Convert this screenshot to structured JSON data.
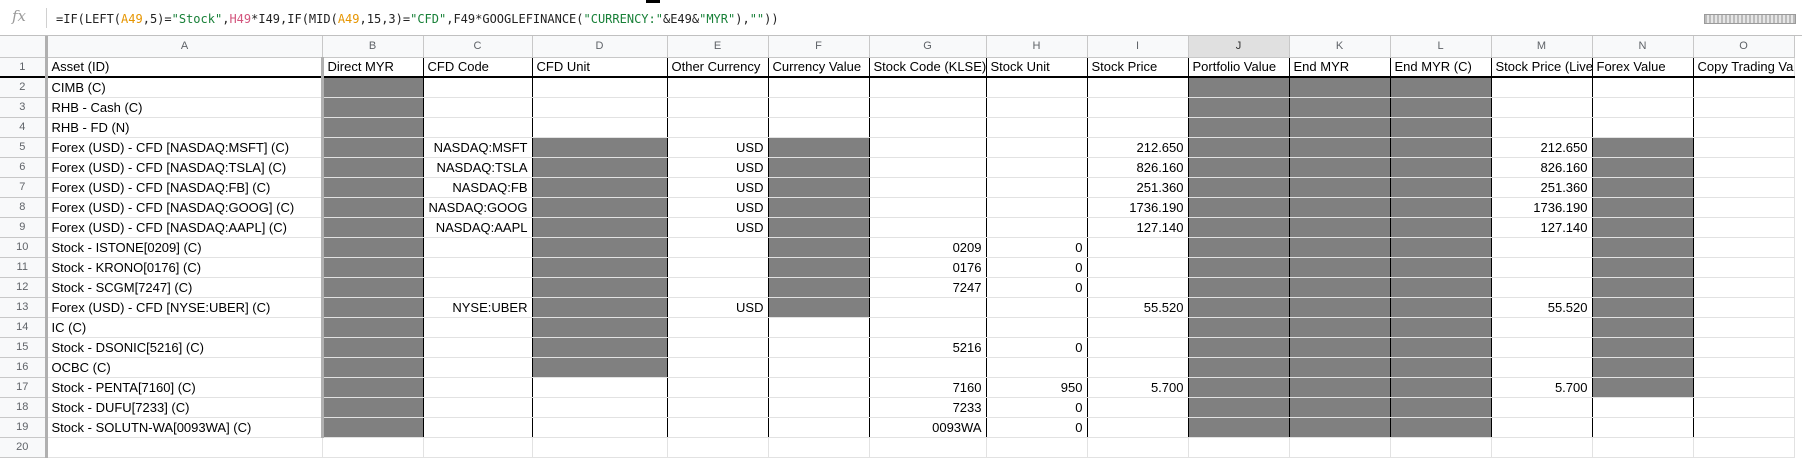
{
  "formula_bar": {
    "fx_label": "fx",
    "segments": [
      {
        "text": "=IF(LEFT(",
        "style": "plain"
      },
      {
        "text": "A49",
        "style": "ref1"
      },
      {
        "text": ",5)=",
        "style": "plain"
      },
      {
        "text": "\"Stock\"",
        "style": "string"
      },
      {
        "text": ",",
        "style": "plain"
      },
      {
        "text": "H49",
        "style": "ref2"
      },
      {
        "text": "*I49,IF(MID(",
        "style": "plain"
      },
      {
        "text": "A49",
        "style": "ref1"
      },
      {
        "text": ",15,3)=",
        "style": "plain"
      },
      {
        "text": "\"CFD\"",
        "style": "string"
      },
      {
        "text": ",F49*GOOGLEFINANCE(",
        "style": "plain"
      },
      {
        "text": "\"CURRENCY:\"",
        "style": "string"
      },
      {
        "text": "&E49&",
        "style": "plain"
      },
      {
        "text": "\"MYR\"",
        "style": "string"
      },
      {
        "text": "),",
        "style": "plain"
      },
      {
        "text": "\"\"",
        "style": "string"
      },
      {
        "text": "))",
        "style": "plain"
      }
    ]
  },
  "colors": {
    "shade": "#808080",
    "header_bg": "#f8f9fa",
    "string": "#188038",
    "ref1": "#e69500",
    "ref2": "#d3557d"
  },
  "columns": [
    "A",
    "B",
    "C",
    "D",
    "E",
    "F",
    "G",
    "H",
    "I",
    "J",
    "K",
    "L",
    "M",
    "N",
    "O"
  ],
  "selected_column": "J",
  "header_row": [
    "Asset (ID)",
    "Direct MYR",
    "CFD Code",
    "CFD Unit",
    "Other Currency",
    "Currency Value",
    "Stock Code (KLSE)",
    "Stock Unit",
    "Stock Price",
    "Portfolio Value",
    "End MYR",
    "End MYR (C)",
    "Stock Price (Live)",
    "Forex Value",
    "Copy Trading Value"
  ],
  "rows": [
    {
      "num": "2",
      "cells": [
        "CIMB (C)",
        "",
        "",
        "",
        "",
        "",
        "",
        "",
        "",
        "",
        "",
        "",
        "",
        "",
        ""
      ]
    },
    {
      "num": "3",
      "cells": [
        "RHB - Cash (C)",
        "",
        "",
        "",
        "",
        "",
        "",
        "",
        "",
        "",
        "",
        "",
        "",
        "",
        ""
      ]
    },
    {
      "num": "4",
      "cells": [
        "RHB - FD (N)",
        "",
        "",
        "",
        "",
        "",
        "",
        "",
        "",
        "",
        "",
        "",
        "",
        "",
        ""
      ]
    },
    {
      "num": "5",
      "cells": [
        "Forex (USD) - CFD [NASDAQ:MSFT] (C)",
        "",
        "NASDAQ:MSFT",
        "",
        "USD",
        "",
        "",
        "",
        "212.650",
        "",
        "",
        "",
        "212.650",
        "",
        ""
      ]
    },
    {
      "num": "6",
      "cells": [
        "Forex (USD) - CFD [NASDAQ:TSLA] (C)",
        "",
        "NASDAQ:TSLA",
        "",
        "USD",
        "",
        "",
        "",
        "826.160",
        "",
        "",
        "",
        "826.160",
        "",
        ""
      ]
    },
    {
      "num": "7",
      "cells": [
        "Forex (USD) - CFD [NASDAQ:FB] (C)",
        "",
        "NASDAQ:FB",
        "",
        "USD",
        "",
        "",
        "",
        "251.360",
        "",
        "",
        "",
        "251.360",
        "",
        ""
      ]
    },
    {
      "num": "8",
      "cells": [
        "Forex (USD) - CFD [NASDAQ:GOOG] (C)",
        "",
        "NASDAQ:GOOG",
        "",
        "USD",
        "",
        "",
        "",
        "1736.190",
        "",
        "",
        "",
        "1736.190",
        "",
        ""
      ]
    },
    {
      "num": "9",
      "cells": [
        "Forex (USD) - CFD [NASDAQ:AAPL] (C)",
        "",
        "NASDAQ:AAPL",
        "",
        "USD",
        "",
        "",
        "",
        "127.140",
        "",
        "",
        "",
        "127.140",
        "",
        ""
      ]
    },
    {
      "num": "10",
      "cells": [
        "Stock - ISTONE[0209] (C)",
        "",
        "",
        "",
        "",
        "",
        "0209",
        "0",
        "",
        "",
        "",
        "",
        "",
        "",
        ""
      ]
    },
    {
      "num": "11",
      "cells": [
        "Stock - KRONO[0176] (C)",
        "",
        "",
        "",
        "",
        "",
        "0176",
        "0",
        "",
        "",
        "",
        "",
        "",
        "",
        ""
      ]
    },
    {
      "num": "12",
      "cells": [
        "Stock - SCGM[7247] (C)",
        "",
        "",
        "",
        "",
        "",
        "7247",
        "0",
        "",
        "",
        "",
        "",
        "",
        "",
        ""
      ]
    },
    {
      "num": "13",
      "cells": [
        "Forex (USD) - CFD [NYSE:UBER] (C)",
        "",
        "NYSE:UBER",
        "",
        "USD",
        "",
        "",
        "",
        "55.520",
        "",
        "",
        "",
        "55.520",
        "",
        ""
      ]
    },
    {
      "num": "14",
      "cells": [
        "IC (C)",
        "",
        "",
        "",
        "",
        "",
        "",
        "",
        "",
        "",
        "",
        "",
        "",
        "",
        ""
      ]
    },
    {
      "num": "15",
      "cells": [
        "Stock - DSONIC[5216] (C)",
        "",
        "",
        "",
        "",
        "",
        "5216",
        "0",
        "",
        "",
        "",
        "",
        "",
        "",
        ""
      ]
    },
    {
      "num": "16",
      "cells": [
        "OCBC (C)",
        "",
        "",
        "",
        "",
        "",
        "",
        "",
        "",
        "",
        "",
        "",
        "",
        "",
        ""
      ]
    },
    {
      "num": "17",
      "cells": [
        "Stock - PENTA[7160] (C)",
        "",
        "",
        "",
        "",
        "",
        "7160",
        "950",
        "5.700",
        "",
        "",
        "",
        "5.700",
        "",
        ""
      ]
    },
    {
      "num": "18",
      "cells": [
        "Stock - DUFU[7233] (C)",
        "",
        "",
        "",
        "",
        "",
        "7233",
        "0",
        "",
        "",
        "",
        "",
        "",
        "",
        ""
      ]
    },
    {
      "num": "19",
      "cells": [
        "Stock - SOLUTN-WA[0093WA] (C)",
        "",
        "",
        "",
        "",
        "",
        "0093WA",
        "0",
        "",
        "",
        "",
        "",
        "",
        "",
        ""
      ]
    }
  ],
  "trailing_row": "20"
}
